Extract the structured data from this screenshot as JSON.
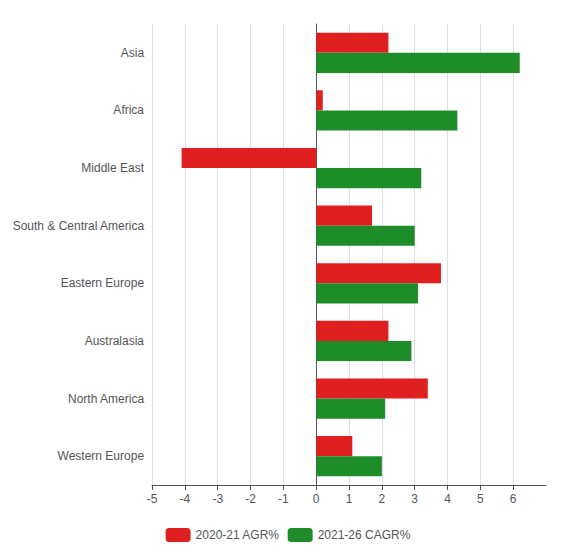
{
  "chart_data": {
    "type": "bar",
    "orientation": "horizontal",
    "categories": [
      "Asia",
      "Africa",
      "Middle East",
      "South & Central America",
      "Eastern Europe",
      "Australasia",
      "North America",
      "Western Europe"
    ],
    "series": [
      {
        "name": "2020-21 AGR%",
        "color": "#e02020",
        "values": [
          2.2,
          0.2,
          -4.1,
          1.7,
          3.8,
          2.2,
          3.4,
          1.1
        ]
      },
      {
        "name": "2021-26 CAGR%",
        "color": "#1e8c28",
        "values": [
          6.2,
          4.3,
          3.2,
          3.0,
          3.1,
          2.9,
          2.1,
          2.0
        ]
      }
    ],
    "xlim": [
      -5,
      7
    ],
    "xticks": [
      -5,
      -4,
      -3,
      -2,
      -1,
      0,
      1,
      2,
      3,
      4,
      5,
      6
    ],
    "grid": true,
    "legend": "bottom"
  }
}
